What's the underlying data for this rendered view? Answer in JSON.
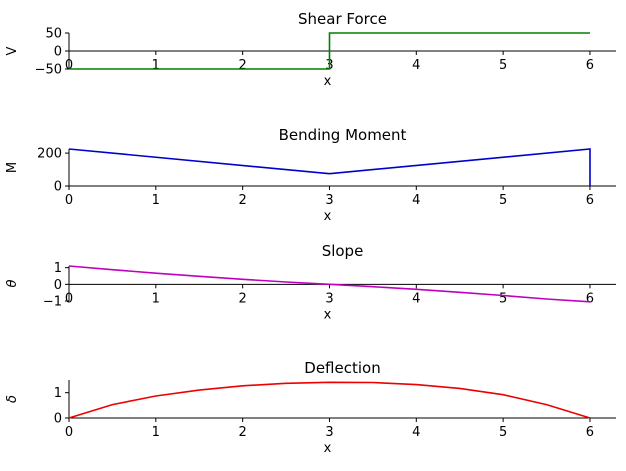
{
  "chart_data": [
    {
      "type": "line",
      "title": "Shear Force",
      "xlabel": "x",
      "ylabel": "V",
      "xlim": [
        0,
        6.3
      ],
      "ylim": [
        -50,
        50
      ],
      "xticks": [
        0,
        1,
        2,
        3,
        4,
        5,
        6
      ],
      "yticks": [
        -50,
        0,
        50
      ],
      "color": "#008000",
      "grid": false,
      "series": [
        {
          "x": [
            0,
            3,
            3,
            6
          ],
          "y": [
            -50,
            -50,
            50,
            50
          ]
        }
      ]
    },
    {
      "type": "line",
      "title": "Bending Moment",
      "xlabel": "x",
      "ylabel": "M",
      "xlim": [
        0,
        6.3
      ],
      "ylim": [
        0,
        225
      ],
      "xticks": [
        0,
        1,
        2,
        3,
        4,
        5,
        6
      ],
      "yticks": [
        0,
        200
      ],
      "color": "#0000cc",
      "grid": false,
      "series": [
        {
          "x": [
            0,
            3,
            6,
            6
          ],
          "y": [
            225,
            75,
            225,
            0
          ]
        }
      ]
    },
    {
      "type": "line",
      "title": "Slope",
      "xlabel": "x",
      "ylabel": "θ",
      "xlim": [
        0,
        6.3
      ],
      "ylim": [
        -1,
        1.1
      ],
      "xticks": [
        0,
        1,
        2,
        3,
        4,
        5,
        6
      ],
      "yticks": [
        -1,
        0,
        1
      ],
      "color": "#bf00bf",
      "grid": false,
      "series": [
        {
          "x": [
            0,
            0.5,
            1,
            1.5,
            2,
            2.5,
            3,
            3.5,
            4,
            4.5,
            5,
            5.5,
            6
          ],
          "y": [
            1.1,
            0.88,
            0.67,
            0.48,
            0.3,
            0.14,
            0.0,
            -0.14,
            -0.3,
            -0.48,
            -0.67,
            -0.88,
            -1.05
          ]
        }
      ]
    },
    {
      "type": "line",
      "title": "Deflection",
      "xlabel": "x",
      "ylabel": "δ",
      "xlim": [
        0,
        6.3
      ],
      "ylim": [
        0,
        1.5
      ],
      "xticks": [
        0,
        1,
        2,
        3,
        4,
        5,
        6
      ],
      "yticks": [
        0,
        1
      ],
      "color": "#ee0000",
      "grid": false,
      "series": [
        {
          "x": [
            0,
            0.5,
            1,
            1.5,
            2,
            2.5,
            3,
            3.5,
            4,
            4.5,
            5,
            5.5,
            6
          ],
          "y": [
            0,
            0.53,
            0.87,
            1.1,
            1.27,
            1.37,
            1.41,
            1.4,
            1.32,
            1.17,
            0.92,
            0.53,
            0
          ]
        }
      ]
    }
  ]
}
